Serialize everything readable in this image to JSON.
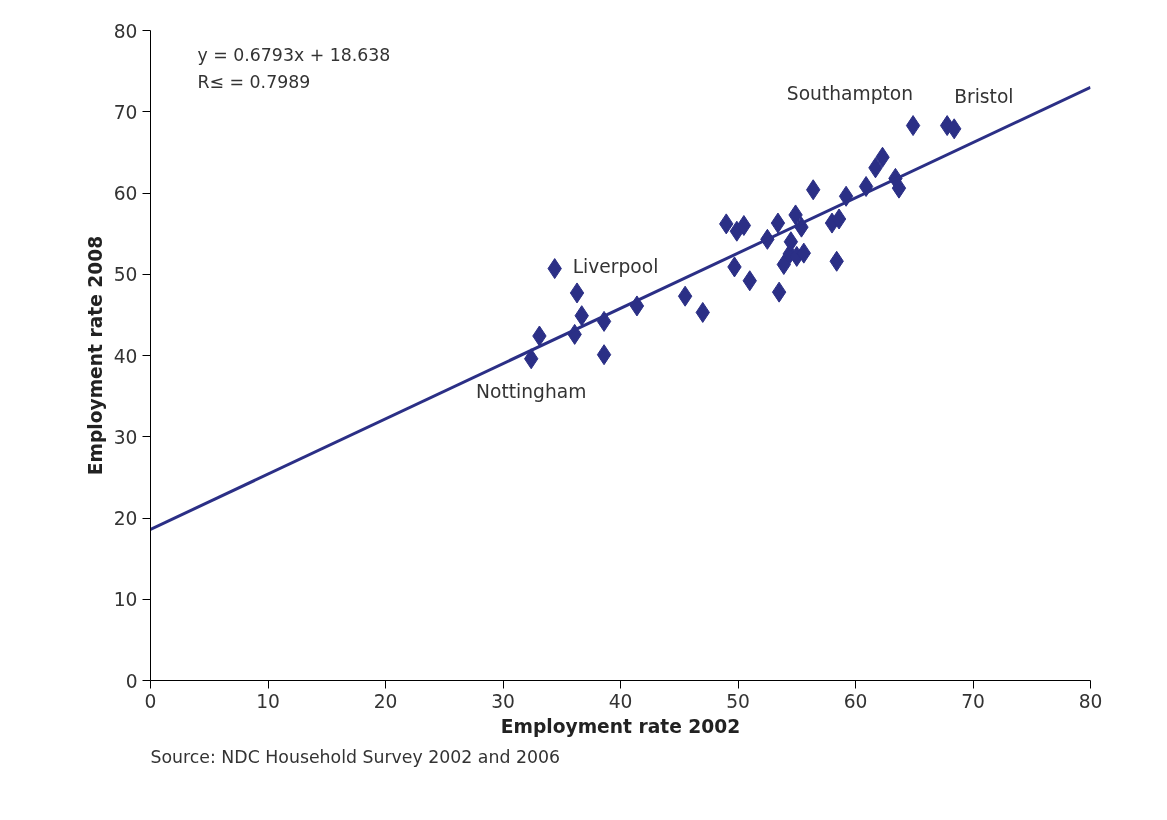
{
  "chart_data": {
    "type": "scatter",
    "xlabel": "Employment rate 2002",
    "ylabel": "Employment rate 2008",
    "xlim": [
      0,
      80
    ],
    "ylim": [
      0,
      80
    ],
    "xticks": [
      0,
      10,
      20,
      30,
      40,
      50,
      60,
      70,
      80
    ],
    "yticks": [
      0,
      10,
      20,
      30,
      40,
      50,
      60,
      70,
      80
    ],
    "grid": false,
    "marker": "diamond",
    "series": [
      {
        "color": "#2b2f86",
        "x": [
          32.4,
          33.1,
          34.4,
          36.3,
          36.7,
          36.1,
          38.6,
          38.6,
          41.4,
          45.5,
          47.0,
          49.0,
          49.9,
          50.5,
          49.7,
          51.0,
          52.5,
          53.4,
          53.5,
          53.9,
          54.4,
          54.5,
          54.9,
          55.0,
          55.4,
          55.6,
          56.4,
          58.0,
          58.6,
          58.4,
          59.2,
          60.9,
          61.7,
          62.3,
          63.4,
          63.7,
          64.9,
          67.8,
          68.4
        ],
        "values": [
          39.6,
          42.4,
          50.7,
          47.7,
          44.9,
          42.6,
          44.2,
          40.1,
          46.1,
          47.3,
          45.3,
          56.2,
          55.3,
          56.0,
          50.9,
          49.2,
          54.3,
          56.3,
          47.8,
          51.2,
          52.5,
          54.0,
          57.3,
          52.2,
          55.8,
          52.6,
          60.4,
          56.3,
          56.8,
          51.6,
          59.6,
          60.8,
          63.1,
          64.4,
          61.8,
          60.6,
          68.3,
          68.3,
          67.9
        ]
      },
      {
        "type": "line",
        "color": "#2b2f86",
        "x": [
          0,
          80
        ],
        "values": [
          18.6,
          73.0
        ],
        "line_style": "solid",
        "marker": "none"
      }
    ],
    "annotations": [
      "y     = 0.6793x + 18.638",
      "R≤  = 0.7989",
      {
        "text": "Liverpool",
        "x": 34.4,
        "y": 50.7
      },
      {
        "text": "Nottingham",
        "x": 32.4,
        "y": 39.6
      },
      {
        "text": "Southampton",
        "x": 64.9,
        "y": 68.3
      },
      {
        "text": "Bristol",
        "x": 68.4,
        "y": 67.9
      },
      "Source: NDC Household Survey 2002 and 2006"
    ]
  }
}
